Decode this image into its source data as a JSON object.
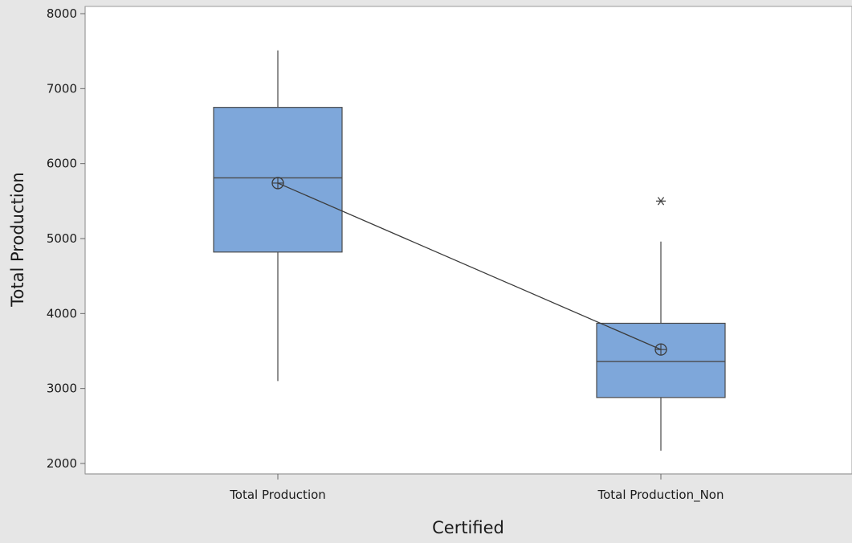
{
  "chart_data": {
    "type": "boxplot",
    "xlabel": "Certified",
    "ylabel": "Total Production",
    "ylim": [
      2000,
      8000
    ],
    "yticks": [
      2000,
      3000,
      4000,
      5000,
      6000,
      7000,
      8000
    ],
    "grid": false,
    "legend": "none",
    "categories": [
      "Total Production",
      "Total Production_Non"
    ],
    "boxes": [
      {
        "category": "Total Production",
        "whisker_low": 3100,
        "q1": 4820,
        "median": 5810,
        "q3": 6750,
        "whisker_high": 7510,
        "mean": 5740,
        "outliers": []
      },
      {
        "category": "Total Production_Non",
        "whisker_low": 2170,
        "q1": 2880,
        "median": 3360,
        "q3": 3870,
        "whisker_high": 4960,
        "mean": 3520,
        "outliers": [
          5500
        ]
      }
    ],
    "mean_connect_line": true,
    "colors": {
      "box_fill": "#7ea7da",
      "box_stroke": "#4a4a4a",
      "line": "#3c3c3c",
      "plot_background": "#ffffff",
      "figure_background": "#e6e6e6"
    }
  }
}
